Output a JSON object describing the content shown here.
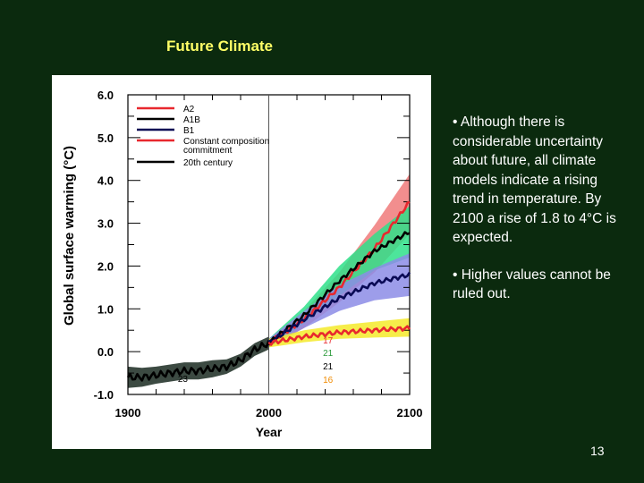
{
  "slide": {
    "title": "Future Climate",
    "page_number": "13",
    "bullets": [
      "• Although there is considerable uncertainty about future, all climate models indicate a rising trend in temperature.  By 2100 a rise of 1.8 to 4°C is expected.",
      "• Higher values cannot be ruled out."
    ]
  },
  "chart_data": {
    "type": "line",
    "title": "",
    "xlabel": "Year",
    "ylabel": "Global surface warming (°C)",
    "xlim": [
      1900,
      2100
    ],
    "ylim": [
      -1.0,
      6.0
    ],
    "x_ticks": [
      1900,
      2000,
      2100
    ],
    "y_ticks": [
      6.0,
      5.0,
      4.0,
      3.0,
      2.0,
      1.0,
      0.0,
      -1.0
    ],
    "y_tick_labels": [
      "6.0",
      "5.0",
      "4.0",
      "3.0",
      "2.0",
      "1.0",
      "0.0",
      "-1.0"
    ],
    "x_tick_labels": [
      "1900",
      "2000",
      "2100"
    ],
    "vertical_marker_x": 2000,
    "legend_position": "top-left",
    "legend": [
      {
        "label": "A2",
        "color": "#e8282e"
      },
      {
        "label": "A1B",
        "color": "#000000"
      },
      {
        "label": "B1",
        "color": "#0a0a55"
      },
      {
        "label": "Constant composition",
        "sublabel": "commitment",
        "color": "#e8282e"
      },
      {
        "label": "20th century",
        "color": "#000000"
      }
    ],
    "model_counts": [
      {
        "text": "23",
        "color": "#000000"
      },
      {
        "text": "17",
        "color": "#e8282e"
      },
      {
        "text": "21",
        "color": "#2a9a3a"
      },
      {
        "text": "21",
        "color": "#000000"
      },
      {
        "text": "16",
        "color": "#f08a00"
      }
    ],
    "series": [
      {
        "name": "20th century",
        "color": "#000000",
        "band_color": "#3c4a42",
        "x": [
          1900,
          1910,
          1920,
          1930,
          1940,
          1950,
          1960,
          1970,
          1980,
          1990,
          2000
        ],
        "values": [
          -0.6,
          -0.6,
          -0.55,
          -0.5,
          -0.45,
          -0.45,
          -0.4,
          -0.35,
          -0.2,
          0.05,
          0.2
        ],
        "band_low": [
          -0.85,
          -0.82,
          -0.75,
          -0.7,
          -0.65,
          -0.65,
          -0.6,
          -0.52,
          -0.35,
          -0.1,
          0.05
        ],
        "band_high": [
          -0.35,
          -0.38,
          -0.35,
          -0.3,
          -0.25,
          -0.25,
          -0.2,
          -0.18,
          -0.05,
          0.2,
          0.35
        ]
      },
      {
        "name": "A2",
        "color": "#e8282e",
        "band_color": "#f07a7a",
        "x": [
          2000,
          2025,
          2050,
          2075,
          2100
        ],
        "values": [
          0.2,
          0.75,
          1.5,
          2.4,
          3.5
        ],
        "band_low": [
          0.1,
          0.55,
          1.15,
          1.85,
          2.75
        ],
        "band_high": [
          0.3,
          0.95,
          1.85,
          2.95,
          4.15
        ]
      },
      {
        "name": "A1B",
        "color": "#000000",
        "band_color": "#2ee08a",
        "x": [
          2000,
          2025,
          2050,
          2075,
          2100
        ],
        "values": [
          0.2,
          0.85,
          1.65,
          2.35,
          2.8
        ],
        "band_low": [
          0.1,
          0.65,
          1.3,
          1.9,
          2.2
        ],
        "band_high": [
          0.3,
          1.05,
          2.0,
          2.75,
          3.4
        ]
      },
      {
        "name": "B1",
        "color": "#0a0a55",
        "band_color": "#8c8ce6",
        "x": [
          2000,
          2025,
          2050,
          2075,
          2100
        ],
        "values": [
          0.2,
          0.75,
          1.25,
          1.6,
          1.8
        ],
        "band_low": [
          0.1,
          0.55,
          0.95,
          1.2,
          1.3
        ],
        "band_high": [
          0.3,
          0.95,
          1.55,
          1.95,
          2.3
        ]
      },
      {
        "name": "Constant composition commitment",
        "color": "#e8282e",
        "band_color": "#f5ea2a",
        "x": [
          2000,
          2025,
          2050,
          2075,
          2100
        ],
        "values": [
          0.2,
          0.35,
          0.45,
          0.5,
          0.55
        ],
        "band_low": [
          0.1,
          0.22,
          0.3,
          0.33,
          0.35
        ],
        "band_high": [
          0.3,
          0.5,
          0.62,
          0.7,
          0.78
        ]
      }
    ]
  }
}
